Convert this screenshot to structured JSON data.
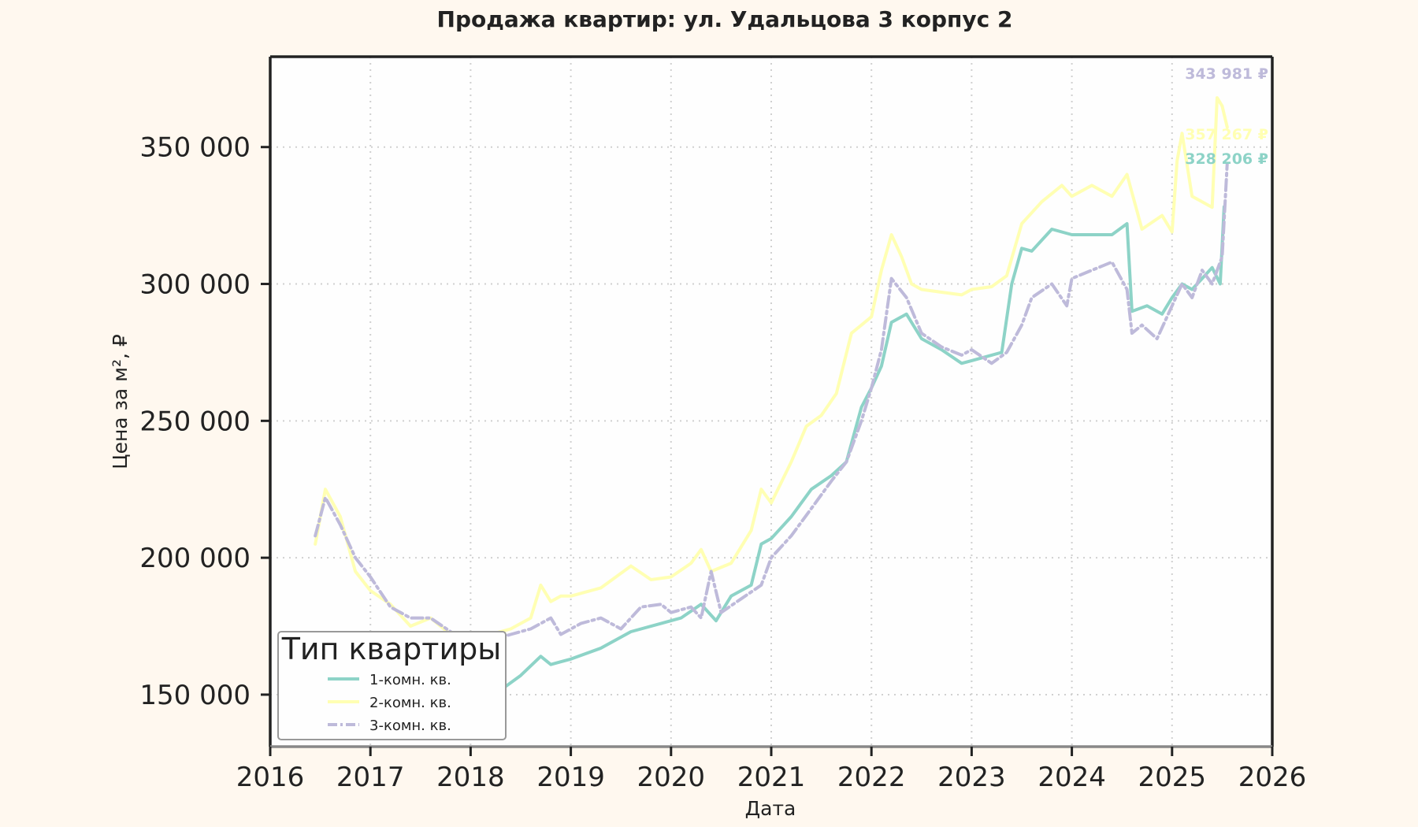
{
  "chart_data": {
    "type": "line",
    "title": "Продажа квартир: ул. Удальцова 3 корпус 2",
    "xlabel": "Дата",
    "ylabel": "Цена за м², ₽",
    "xlim": [
      2016.0,
      2026.0
    ],
    "ylim": [
      131000,
      383000
    ],
    "x_ticks": [
      2016,
      2017,
      2018,
      2019,
      2020,
      2021,
      2022,
      2023,
      2024,
      2025,
      2026
    ],
    "y_ticks": [
      150000,
      200000,
      250000,
      300000,
      350000
    ],
    "x_tick_labels": [
      "2016",
      "2017",
      "2018",
      "2019",
      "2020",
      "2021",
      "2022",
      "2023",
      "2024",
      "2025",
      "2026"
    ],
    "y_tick_labels": [
      "150 000",
      "200 000",
      "250 000",
      "300 000",
      "350 000"
    ],
    "grid": true,
    "legend": {
      "title": "Тип квартиры",
      "placement": "lower-left"
    },
    "series": [
      {
        "name": "1-комн. кв.",
        "color": "#8dd3c7",
        "dash": "solid",
        "end_label": "328 206 ₽",
        "x": [
          2017.75,
          2018.0,
          2018.2,
          2018.35,
          2018.5,
          2018.7,
          2018.8,
          2018.9,
          2019.0,
          2019.3,
          2019.6,
          2019.9,
          2020.1,
          2020.3,
          2020.45,
          2020.6,
          2020.8,
          2020.9,
          2021.0,
          2021.2,
          2021.4,
          2021.6,
          2021.75,
          2021.9,
          2022.0,
          2022.1,
          2022.2,
          2022.35,
          2022.5,
          2022.7,
          2022.9,
          2023.0,
          2023.1,
          2023.3,
          2023.4,
          2023.5,
          2023.6,
          2023.8,
          2024.0,
          2024.2,
          2024.4,
          2024.55,
          2024.6,
          2024.75,
          2024.9,
          2025.0,
          2025.1,
          2025.2,
          2025.3,
          2025.4,
          2025.48,
          2025.52
        ],
        "y": [
          140000,
          143000,
          147000,
          153000,
          157000,
          164000,
          161000,
          162000,
          163000,
          167000,
          173000,
          176000,
          178000,
          183000,
          177000,
          186000,
          190000,
          205000,
          207000,
          215000,
          225000,
          230000,
          235000,
          255000,
          262000,
          270000,
          286000,
          289000,
          280000,
          276000,
          271000,
          272000,
          273000,
          275000,
          300000,
          313000,
          312000,
          320000,
          318000,
          318000,
          318000,
          322000,
          290000,
          292000,
          289000,
          295000,
          300000,
          298000,
          302000,
          306000,
          300000,
          328206
        ]
      },
      {
        "name": "2-комн. кв.",
        "color": "#ffffb3",
        "dash": "solid",
        "end_label": "357 267 ₽",
        "x": [
          2016.45,
          2016.55,
          2016.7,
          2016.85,
          2017.0,
          2017.2,
          2017.4,
          2017.6,
          2017.8,
          2018.0,
          2018.2,
          2018.4,
          2018.6,
          2018.7,
          2018.8,
          2018.9,
          2019.0,
          2019.3,
          2019.6,
          2019.8,
          2020.0,
          2020.2,
          2020.3,
          2020.4,
          2020.6,
          2020.8,
          2020.9,
          2021.0,
          2021.2,
          2021.35,
          2021.5,
          2021.65,
          2021.8,
          2021.9,
          2022.0,
          2022.1,
          2022.2,
          2022.3,
          2022.4,
          2022.5,
          2022.7,
          2022.9,
          2023.0,
          2023.2,
          2023.35,
          2023.5,
          2023.7,
          2023.9,
          2024.0,
          2024.2,
          2024.4,
          2024.55,
          2024.7,
          2024.9,
          2025.0,
          2025.05,
          2025.1,
          2025.2,
          2025.3,
          2025.4,
          2025.45,
          2025.5,
          2025.55
        ],
        "y": [
          205000,
          225000,
          215000,
          195000,
          188000,
          183000,
          175000,
          178000,
          172000,
          170000,
          172000,
          174000,
          178000,
          190000,
          184000,
          186000,
          186000,
          189000,
          197000,
          192000,
          193000,
          198000,
          203000,
          195000,
          198000,
          210000,
          225000,
          220000,
          235000,
          248000,
          252000,
          260000,
          282000,
          285000,
          288000,
          305000,
          318000,
          310000,
          300000,
          298000,
          297000,
          296000,
          298000,
          299000,
          303000,
          322000,
          330000,
          336000,
          332000,
          336000,
          332000,
          340000,
          320000,
          325000,
          319000,
          345000,
          355000,
          332000,
          330000,
          328000,
          368000,
          365000,
          357267
        ]
      },
      {
        "name": "3-комн. кв.",
        "color": "#bebada",
        "dash": "dashdot",
        "end_label": "343 981 ₽",
        "x": [
          2016.45,
          2016.55,
          2016.7,
          2016.85,
          2017.0,
          2017.2,
          2017.4,
          2017.6,
          2017.8,
          2018.0,
          2018.2,
          2018.4,
          2018.6,
          2018.8,
          2018.9,
          2019.1,
          2019.3,
          2019.5,
          2019.7,
          2019.9,
          2020.0,
          2020.2,
          2020.3,
          2020.4,
          2020.5,
          2020.7,
          2020.9,
          2021.0,
          2021.2,
          2021.4,
          2021.6,
          2021.75,
          2021.9,
          2022.0,
          2022.1,
          2022.2,
          2022.35,
          2022.5,
          2022.7,
          2022.9,
          2023.0,
          2023.2,
          2023.35,
          2023.5,
          2023.6,
          2023.8,
          2023.95,
          2024.0,
          2024.2,
          2024.4,
          2024.55,
          2024.6,
          2024.7,
          2024.85,
          2025.0,
          2025.1,
          2025.2,
          2025.3,
          2025.4,
          2025.5,
          2025.55
        ],
        "y": [
          208000,
          222000,
          212000,
          200000,
          193000,
          182000,
          178000,
          178000,
          173000,
          168000,
          170000,
          172000,
          174000,
          178000,
          172000,
          176000,
          178000,
          174000,
          182000,
          183000,
          180000,
          182000,
          178000,
          195000,
          180000,
          185000,
          190000,
          200000,
          208000,
          218000,
          228000,
          235000,
          250000,
          262000,
          276000,
          302000,
          295000,
          282000,
          277000,
          274000,
          276000,
          271000,
          275000,
          285000,
          295000,
          300000,
          292000,
          302000,
          305000,
          308000,
          298000,
          282000,
          285000,
          280000,
          292000,
          300000,
          295000,
          305000,
          300000,
          310000,
          343981
        ]
      }
    ]
  }
}
